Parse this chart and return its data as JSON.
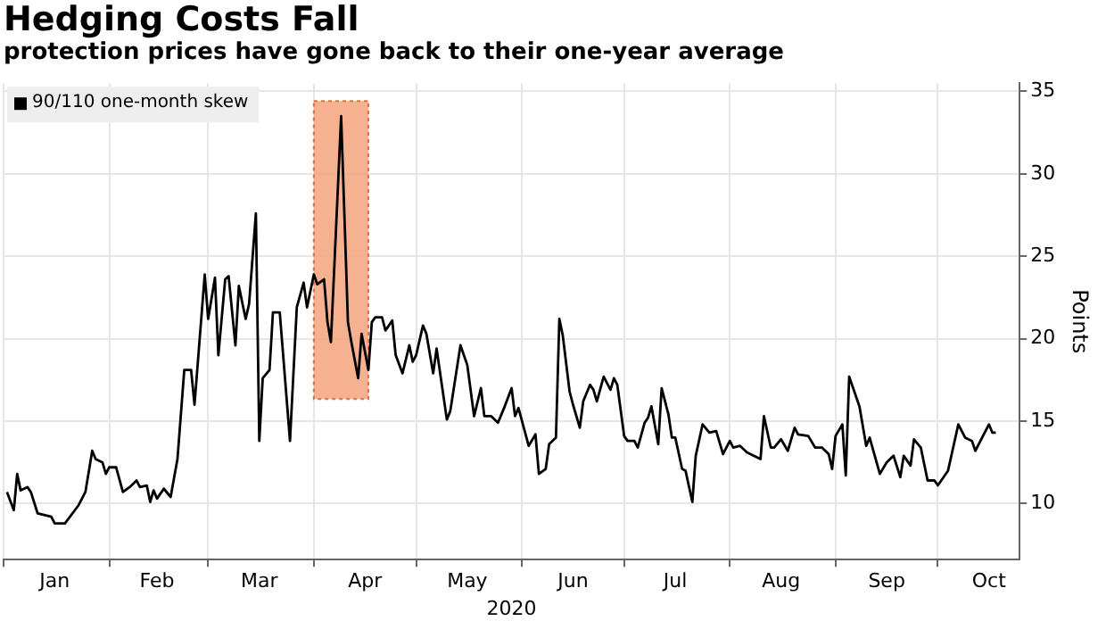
{
  "chart_data": {
    "type": "line",
    "title": "Hedging Costs Fall",
    "subtitle": "protection prices have gone back to their one-year average",
    "xlabel": "2020",
    "ylabel": "Points",
    "x": [
      "2020-01-02",
      "2020-01-04",
      "2020-01-05",
      "2020-01-06",
      "2020-01-08",
      "2020-01-09",
      "2020-01-11",
      "2020-01-15",
      "2020-01-16",
      "2020-01-19",
      "2020-01-23",
      "2020-01-25",
      "2020-01-27",
      "2020-01-28",
      "2020-01-30",
      "2020-01-31",
      "2020-02-01",
      "2020-02-03",
      "2020-02-05",
      "2020-02-07",
      "2020-02-09",
      "2020-02-10",
      "2020-02-12",
      "2020-02-13",
      "2020-02-14",
      "2020-02-15",
      "2020-02-17",
      "2020-02-19",
      "2020-02-21",
      "2020-02-23",
      "2020-02-25",
      "2020-02-26",
      "2020-02-29",
      "2020-03-01",
      "2020-03-03",
      "2020-03-04",
      "2020-03-06",
      "2020-03-07",
      "2020-03-09",
      "2020-03-10",
      "2020-03-12",
      "2020-03-13",
      "2020-03-15",
      "2020-03-16",
      "2020-03-17",
      "2020-03-19",
      "2020-03-20",
      "2020-03-22",
      "2020-03-25",
      "2020-03-27",
      "2020-03-29",
      "2020-03-30",
      "2020-04-01",
      "2020-04-02",
      "2020-04-04",
      "2020-04-05",
      "2020-04-06",
      "2020-04-09",
      "2020-04-11",
      "2020-04-12",
      "2020-04-14",
      "2020-04-15",
      "2020-04-17",
      "2020-04-18",
      "2020-04-19",
      "2020-04-21",
      "2020-04-22",
      "2020-04-24",
      "2020-04-25",
      "2020-04-27",
      "2020-04-29",
      "2020-04-30",
      "2020-05-01",
      "2020-05-03",
      "2020-05-04",
      "2020-05-06",
      "2020-05-07",
      "2020-05-10",
      "2020-05-11",
      "2020-05-14",
      "2020-05-16",
      "2020-05-18",
      "2020-05-20",
      "2020-05-21",
      "2020-05-23",
      "2020-05-25",
      "2020-05-27",
      "2020-05-29",
      "2020-05-30",
      "2020-05-31",
      "2020-06-03",
      "2020-06-05",
      "2020-06-06",
      "2020-06-08",
      "2020-06-09",
      "2020-06-11",
      "2020-06-12",
      "2020-06-13",
      "2020-06-15",
      "2020-06-16",
      "2020-06-18",
      "2020-06-19",
      "2020-06-21",
      "2020-06-22",
      "2020-06-23",
      "2020-06-25",
      "2020-06-27",
      "2020-06-28",
      "2020-06-29",
      "2020-07-01",
      "2020-07-02",
      "2020-07-04",
      "2020-07-05",
      "2020-07-07",
      "2020-07-08",
      "2020-07-09",
      "2020-07-11",
      "2020-07-12",
      "2020-07-14",
      "2020-07-15",
      "2020-07-16",
      "2020-07-18",
      "2020-07-19",
      "2020-07-21",
      "2020-07-22",
      "2020-07-24",
      "2020-07-26",
      "2020-07-28",
      "2020-07-30",
      "2020-08-01",
      "2020-08-02",
      "2020-08-04",
      "2020-08-06",
      "2020-08-10",
      "2020-08-11",
      "2020-08-13",
      "2020-08-14",
      "2020-08-16",
      "2020-08-18",
      "2020-08-20",
      "2020-08-21",
      "2020-08-24",
      "2020-08-26",
      "2020-08-28",
      "2020-08-30",
      "2020-08-31",
      "2020-09-01",
      "2020-09-03",
      "2020-09-04",
      "2020-09-05",
      "2020-09-07",
      "2020-09-08",
      "2020-09-10",
      "2020-09-11",
      "2020-09-14",
      "2020-09-16",
      "2020-09-18",
      "2020-09-20",
      "2020-09-21",
      "2020-09-23",
      "2020-09-24",
      "2020-09-26",
      "2020-09-28",
      "2020-09-30",
      "2020-10-01",
      "2020-10-04",
      "2020-10-07",
      "2020-10-09",
      "2020-10-11",
      "2020-10-12",
      "2020-10-14",
      "2020-10-16",
      "2020-10-17",
      "2020-10-18"
    ],
    "series": [
      {
        "name": "90/110 one-month skew",
        "color": "#000000",
        "values": [
          10.7,
          9.6,
          11.8,
          10.8,
          11.0,
          10.7,
          9.4,
          9.2,
          8.8,
          8.8,
          9.9,
          10.7,
          13.2,
          12.7,
          12.5,
          11.8,
          12.2,
          12.2,
          10.7,
          11.0,
          11.4,
          11.0,
          11.1,
          10.1,
          10.8,
          10.3,
          10.9,
          10.4,
          12.7,
          18.1,
          18.1,
          16.0,
          23.9,
          21.2,
          23.7,
          19.0,
          23.6,
          23.8,
          19.6,
          23.2,
          21.2,
          22.1,
          27.6,
          13.8,
          17.6,
          18.1,
          21.6,
          21.6,
          13.8,
          21.9,
          23.4,
          21.9,
          23.9,
          23.3,
          23.6,
          21.0,
          19.8,
          33.5,
          21.0,
          19.8,
          17.6,
          20.3,
          18.1,
          21.0,
          21.3,
          21.3,
          20.5,
          21.1,
          19.0,
          17.9,
          19.6,
          18.6,
          19.0,
          20.8,
          20.3,
          17.9,
          19.4,
          15.1,
          15.6,
          19.6,
          18.4,
          15.3,
          17.0,
          15.3,
          15.3,
          14.9,
          15.9,
          17.0,
          15.3,
          15.8,
          13.5,
          14.2,
          11.8,
          12.1,
          13.6,
          14.0,
          21.2,
          20.2,
          16.8,
          16.0,
          14.6,
          16.2,
          17.2,
          16.9,
          16.2,
          17.7,
          16.9,
          17.6,
          17.2,
          14.1,
          13.8,
          13.8,
          13.4,
          14.9,
          15.2,
          15.9,
          13.6,
          17.0,
          15.4,
          14.0,
          14.0,
          12.1,
          12.0,
          10.1,
          12.9,
          14.8,
          14.3,
          14.4,
          13.0,
          13.8,
          13.4,
          13.5,
          13.1,
          12.7,
          15.3,
          13.4,
          13.4,
          13.9,
          13.2,
          14.6,
          14.2,
          14.1,
          13.4,
          13.4,
          13.0,
          12.1,
          14.1,
          14.8,
          11.7,
          17.7,
          16.5,
          15.9,
          13.5,
          14.0,
          11.8,
          12.5,
          12.9,
          11.6,
          12.9,
          12.3,
          13.9,
          13.4,
          11.4,
          11.4,
          11.1,
          12.0,
          14.8,
          14.0,
          13.8,
          13.2,
          14.0,
          14.8,
          14.3,
          14.3
        ]
      }
    ],
    "xlim": [
      "2020-01-01",
      "2020-10-25"
    ],
    "xticks": [
      {
        "value": "2020-01-01",
        "label": null
      },
      {
        "value": "2020-01-16",
        "label": "Jan"
      },
      {
        "value": "2020-02-01",
        "label": null
      },
      {
        "value": "2020-02-15",
        "label": "Feb"
      },
      {
        "value": "2020-03-01",
        "label": null
      },
      {
        "value": "2020-03-16",
        "label": "Mar"
      },
      {
        "value": "2020-04-01",
        "label": null
      },
      {
        "value": "2020-04-16",
        "label": "Apr"
      },
      {
        "value": "2020-05-01",
        "label": null
      },
      {
        "value": "2020-05-16",
        "label": "May"
      },
      {
        "value": "2020-06-01",
        "label": null
      },
      {
        "value": "2020-06-16",
        "label": "Jun"
      },
      {
        "value": "2020-07-01",
        "label": null
      },
      {
        "value": "2020-07-16",
        "label": "Jul"
      },
      {
        "value": "2020-08-01",
        "label": null
      },
      {
        "value": "2020-08-16",
        "label": "Aug"
      },
      {
        "value": "2020-09-01",
        "label": null
      },
      {
        "value": "2020-09-16",
        "label": "Sep"
      },
      {
        "value": "2020-10-01",
        "label": null
      },
      {
        "value": "2020-10-16",
        "label": "Oct"
      }
    ],
    "ylim": [
      6.6,
      35.5
    ],
    "yticks": [
      10,
      15,
      20,
      25,
      30,
      35
    ],
    "bands": [
      {
        "axis": "x",
        "from": "2020-04-01",
        "to": "2020-04-17",
        "color": "#f4a57c"
      }
    ],
    "grid": true,
    "legend": "top left",
    "marker": "none",
    "line_style": "solid"
  }
}
